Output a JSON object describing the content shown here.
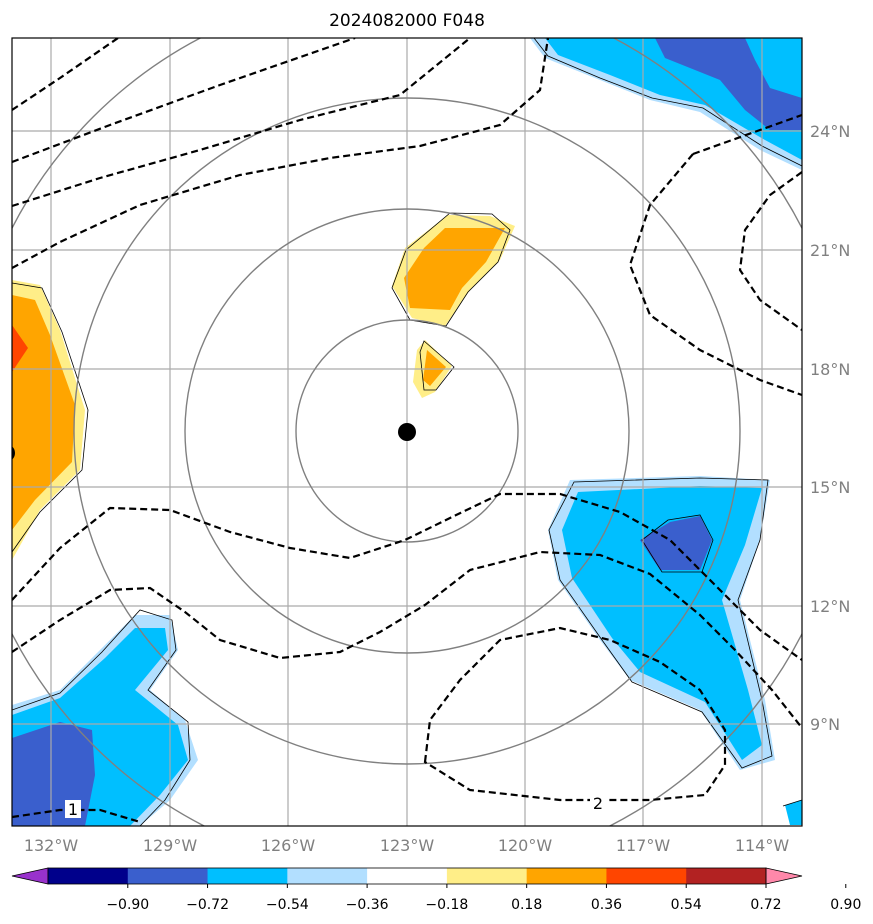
{
  "title": "2024082000 F048",
  "longitude_labels": [
    "132°W",
    "129°W",
    "126°W",
    "123°W",
    "120°W",
    "117°W",
    "114°W"
  ],
  "latitude_labels": [
    "9°N",
    "12°N",
    "15°N",
    "18°N",
    "21°N",
    "24°N"
  ],
  "contour_labels": [
    "1",
    "2"
  ],
  "colorbar": {
    "tick_labels": [
      "−0.90",
      "−0.72",
      "−0.54",
      "−0.36",
      "−0.18",
      "0.18",
      "0.36",
      "0.54",
      "0.72",
      "0.90"
    ],
    "colors": [
      "#9932cc",
      "#00008b",
      "#3a5fcd",
      "#00bfff",
      "#b2dfff",
      "#ffffff",
      "#ffee88",
      "#ffa500",
      "#ff4500",
      "#b22222",
      "#ff88aa"
    ]
  },
  "map": {
    "lon_range": [
      -133.1,
      -112.9
    ],
    "lat_range": [
      6.8,
      26.8
    ],
    "center_marker": {
      "lon": -123.0,
      "lat": 16.4
    },
    "range_rings": 4,
    "fill_colors": {
      "light_blue": "#b2dfff",
      "blue": "#00bfff",
      "dark_blue": "#3a5fcd",
      "yellow": "#ffee88",
      "orange": "#ffa500",
      "red": "#ff4500"
    }
  }
}
